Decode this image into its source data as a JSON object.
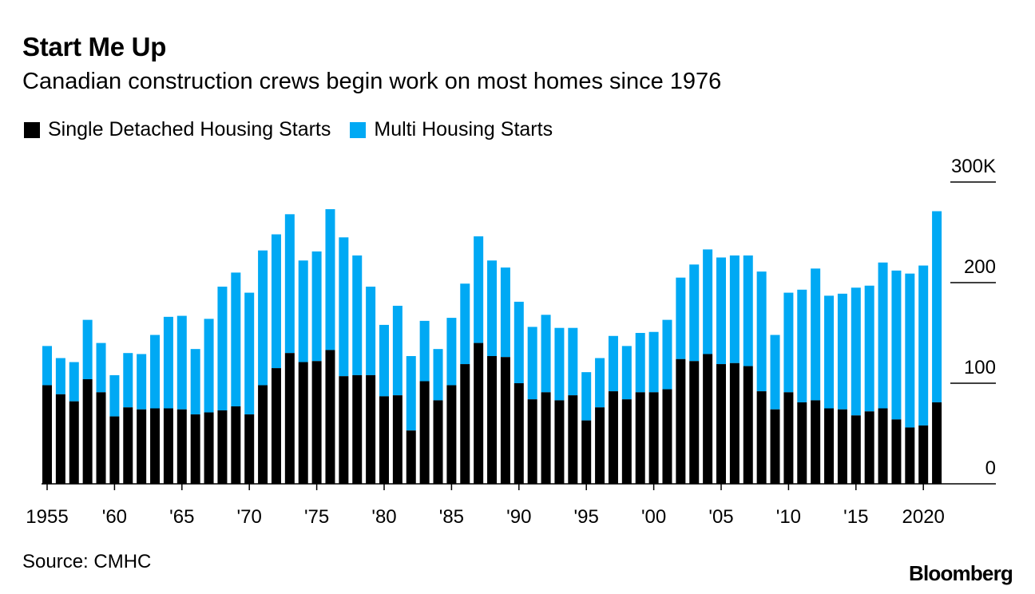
{
  "header": {
    "title": "Start Me Up",
    "subtitle": "Canadian construction crews begin work on most homes since 1976"
  },
  "legend": [
    {
      "label": "Single Detached Housing Starts",
      "color": "#000000"
    },
    {
      "label": "Multi Housing Starts",
      "color": "#00a9f4"
    }
  ],
  "footer": {
    "source": "Source: CMHC",
    "brand": "Bloomberg"
  },
  "chart_data": {
    "type": "bar",
    "stacked": true,
    "x": [
      1955,
      1956,
      1957,
      1958,
      1959,
      1960,
      1961,
      1962,
      1963,
      1964,
      1965,
      1966,
      1967,
      1968,
      1969,
      1970,
      1971,
      1972,
      1973,
      1974,
      1975,
      1976,
      1977,
      1978,
      1979,
      1980,
      1981,
      1982,
      1983,
      1984,
      1985,
      1986,
      1987,
      1988,
      1989,
      1990,
      1991,
      1992,
      1993,
      1994,
      1995,
      1996,
      1997,
      1998,
      1999,
      2000,
      2001,
      2002,
      2003,
      2004,
      2005,
      2006,
      2007,
      2008,
      2009,
      2010,
      2011,
      2012,
      2013,
      2014,
      2015,
      2016,
      2017,
      2018,
      2019,
      2020,
      2021
    ],
    "x_tick_labels": [
      {
        "year": 1955,
        "label": "1955"
      },
      {
        "year": 1960,
        "label": "'60"
      },
      {
        "year": 1965,
        "label": "'65"
      },
      {
        "year": 1970,
        "label": "'70"
      },
      {
        "year": 1975,
        "label": "'75"
      },
      {
        "year": 1980,
        "label": "'80"
      },
      {
        "year": 1985,
        "label": "'85"
      },
      {
        "year": 1990,
        "label": "'90"
      },
      {
        "year": 1995,
        "label": "'95"
      },
      {
        "year": 2000,
        "label": "'00"
      },
      {
        "year": 2005,
        "label": "'05"
      },
      {
        "year": 2010,
        "label": "'10"
      },
      {
        "year": 2015,
        "label": "'15"
      },
      {
        "year": 2020,
        "label": "2020"
      }
    ],
    "series": [
      {
        "name": "Single Detached Housing Starts",
        "color": "#000000",
        "values": [
          98,
          89,
          82,
          104,
          91,
          67,
          76,
          74,
          75,
          75,
          74,
          69,
          71,
          73,
          77,
          69,
          98,
          115,
          130,
          121,
          122,
          133,
          107,
          108,
          108,
          87,
          88,
          53,
          102,
          83,
          98,
          119,
          140,
          127,
          126,
          100,
          84,
          91,
          83,
          88,
          63,
          76,
          92,
          84,
          91,
          91,
          94,
          124,
          122,
          129,
          119,
          120,
          117,
          92,
          74,
          91,
          81,
          83,
          75,
          74,
          68,
          72,
          75,
          64,
          56,
          58,
          81
        ],
        "totals": [
          137,
          125,
          121,
          163,
          140,
          108,
          130,
          129,
          148,
          166,
          167,
          134,
          164,
          196,
          210,
          190,
          232,
          248,
          268,
          222,
          231,
          273,
          245,
          227,
          196,
          158,
          177,
          127,
          162,
          134,
          165,
          199,
          246,
          222,
          215,
          181,
          156,
          168,
          155,
          155,
          111,
          125,
          147,
          137,
          150,
          151,
          163,
          205,
          218,
          233,
          225,
          227,
          227,
          211,
          148,
          190,
          193,
          214,
          187,
          189,
          195,
          197,
          220,
          212,
          209,
          217,
          271
        ]
      }
    ],
    "y_ticks": [
      {
        "value": 0,
        "label": "0"
      },
      {
        "value": 100,
        "label": "100"
      },
      {
        "value": 200,
        "label": "200"
      },
      {
        "value": 300,
        "label": "300K"
      }
    ],
    "ylim": [
      0,
      300
    ],
    "y_axis_position": "right",
    "legend_position": "top-left",
    "grid": false
  }
}
